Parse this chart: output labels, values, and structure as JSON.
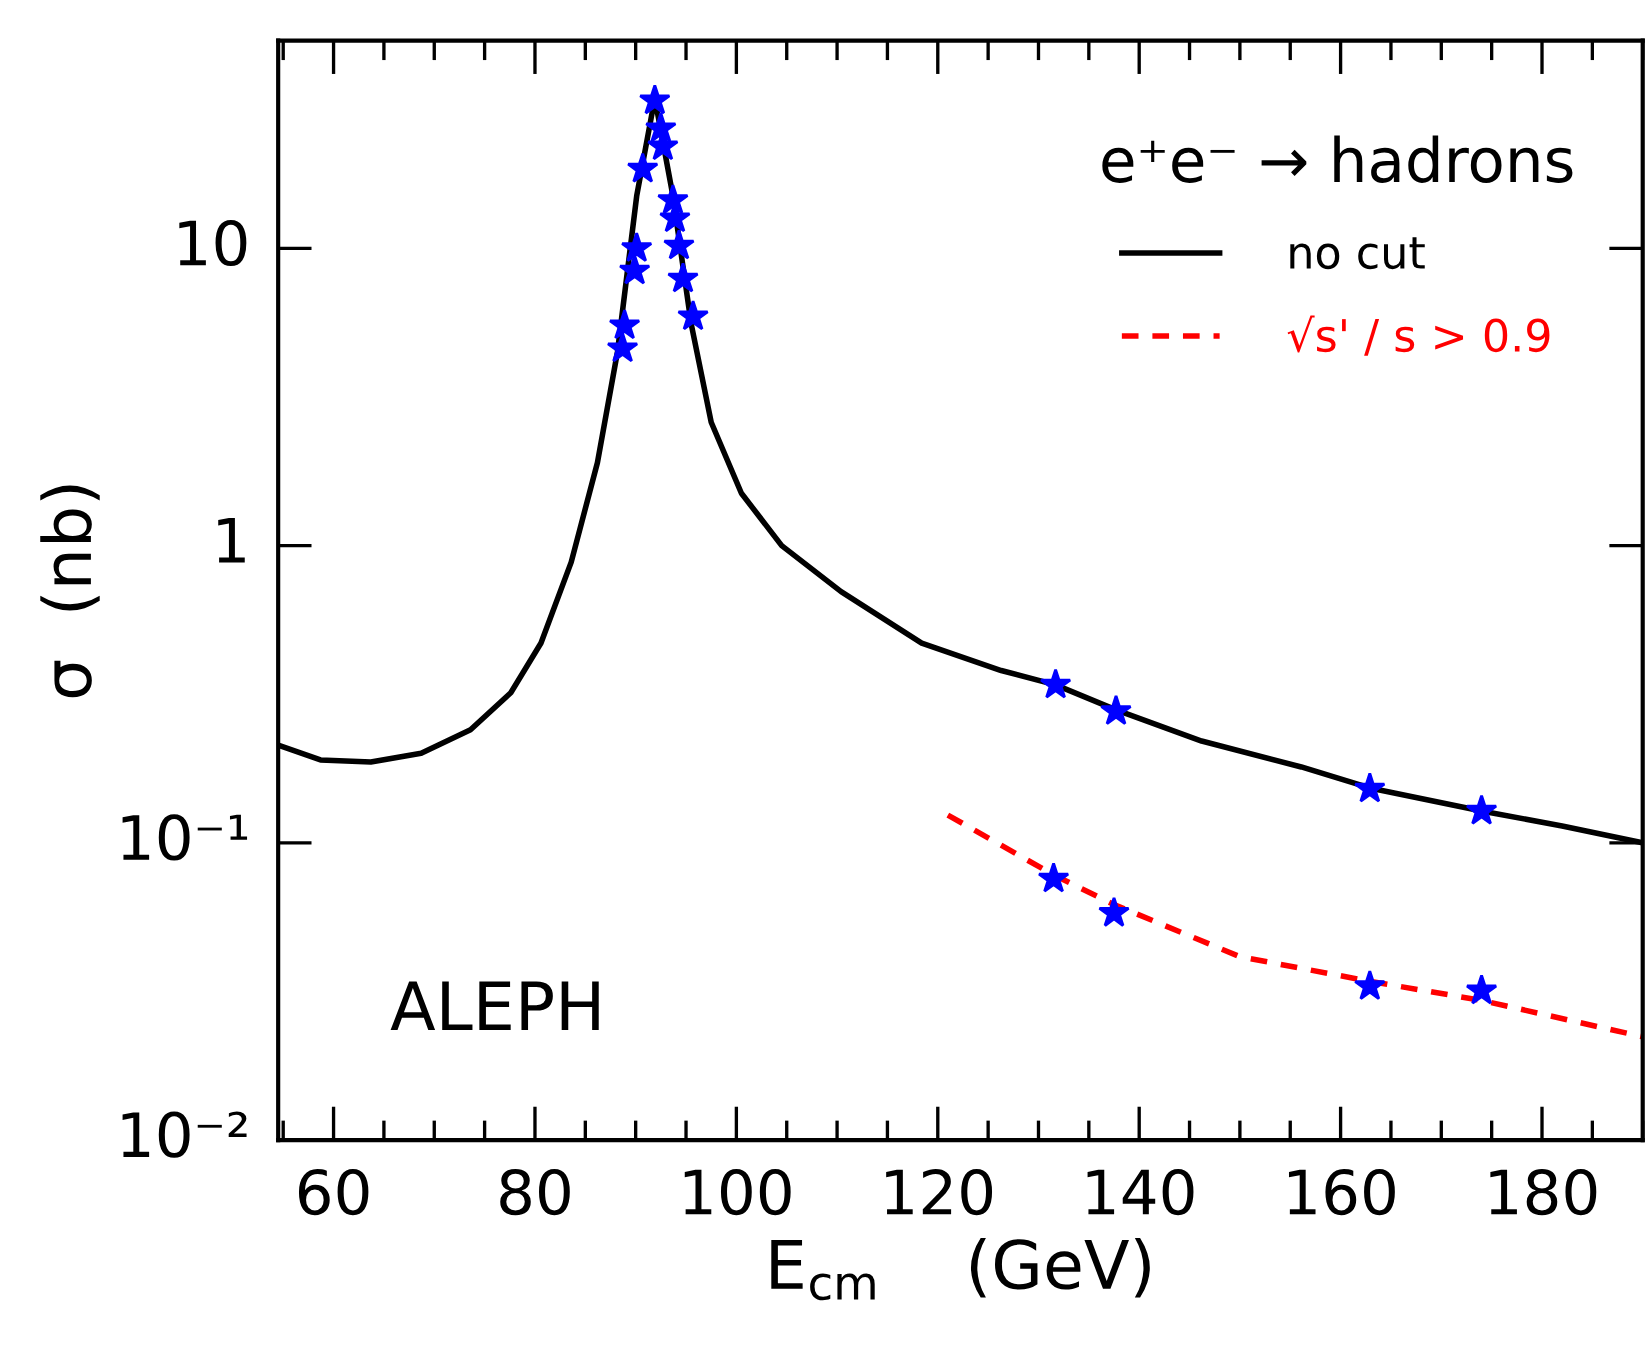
{
  "chart_data": {
    "type": "line",
    "xlabel": "E$_{cm}$    (GeV)",
    "ylabel": "σ  (nb)",
    "log": "y",
    "xlim": [
      54.5,
      190
    ],
    "ylim": [
      0.01,
      50
    ],
    "xticks": [
      60,
      80,
      100,
      120,
      140,
      160,
      180
    ],
    "yticks": [
      {
        "value": 0.01,
        "label": "10⁻²"
      },
      {
        "value": 0.1,
        "label": "10⁻¹"
      },
      1,
      10
    ],
    "legend": "top right",
    "legend_title": "e⁺e⁻ → hadrons",
    "grid": false,
    "annotations": [
      "ALEPH"
    ],
    "series": [
      {
        "name": "no cut",
        "color": "#000000",
        "line_style": "solid",
        "marker": "none",
        "x": [
          54.5,
          58.7,
          63.7,
          68.7,
          73.6,
          77.6,
          80.6,
          83.6,
          86.2,
          88.2,
          90.1,
          91.9,
          93.7,
          95.5,
          97.5,
          100.5,
          104.5,
          110.4,
          118.4,
          126.3,
          131.7,
          137.7,
          146.2,
          156.1,
          162.9,
          174,
          182,
          190
        ],
        "values": [
          0.213,
          0.19,
          0.187,
          0.2,
          0.24,
          0.32,
          0.47,
          0.88,
          1.9,
          4.5,
          15,
          32,
          15,
          5.6,
          2.6,
          1.5,
          1.0,
          0.7,
          0.47,
          0.38,
          0.34,
          0.28,
          0.22,
          0.18,
          0.153,
          0.128,
          0.114,
          0.1
        ]
      },
      {
        "name": "√s' / s > 0.9",
        "color": "#ff0000",
        "line_style": "dashed",
        "marker": "none",
        "x": [
          121,
          131.5,
          137.5,
          150,
          162.5,
          174,
          189.9
        ],
        "values": [
          0.124,
          0.078,
          0.062,
          0.0414,
          0.0344,
          0.0295,
          0.0223
        ]
      },
      {
        "type": "scatter",
        "color": "#0000ff",
        "marker": "star",
        "x": [
          88.7,
          88.9,
          89.9,
          90.1,
          90.7,
          91.9,
          92.5,
          92.7,
          93.7,
          93.9,
          94.3,
          94.7,
          95.7,
          131.7,
          137.7,
          162.9,
          174
        ],
        "values": [
          4.6,
          5.5,
          8.4,
          10,
          18.5,
          31.4,
          25.3,
          22,
          14.5,
          12.6,
          10.2,
          7.9,
          5.9,
          0.34,
          0.277,
          0.152,
          0.128
        ]
      },
      {
        "type": "scatter",
        "color": "#0000ff",
        "marker": "star",
        "x": [
          131.5,
          137.5,
          162.9,
          174
        ],
        "values": [
          0.0757,
          0.058,
          0.0329,
          0.0318
        ]
      }
    ]
  }
}
